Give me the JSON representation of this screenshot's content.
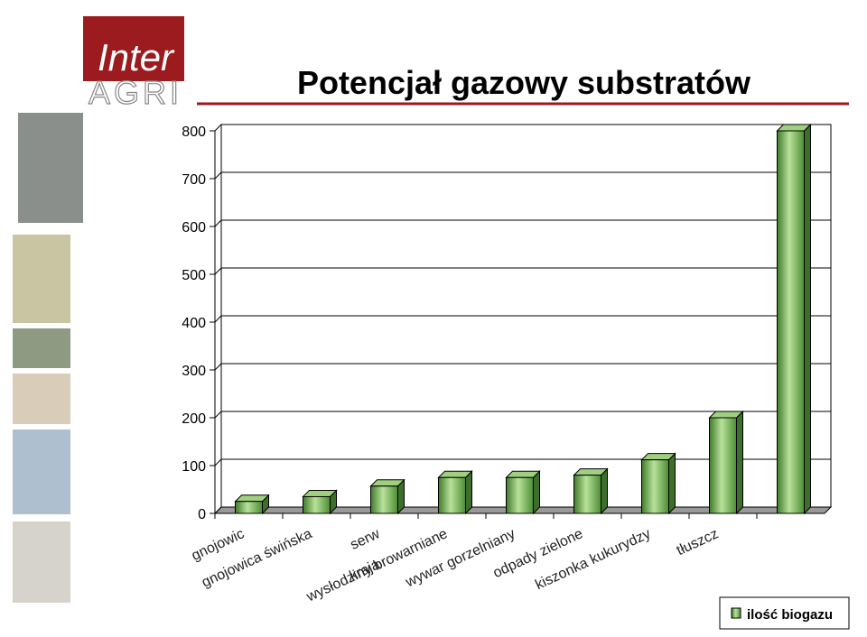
{
  "logo": {
    "top": "Inter",
    "bottom": "AGRI"
  },
  "chart_data": {
    "type": "bar3d",
    "title": "Potencjał gazowy substratów",
    "categories": [
      "gnojowic",
      "gnojowica świńska",
      [
        "serw",
        "kraja"
      ],
      "wysłodziny browarniane",
      "wywar gorzelniany",
      "odpady zielone",
      "kiszonka kukurydzy",
      "tłuszcz",
      null
    ],
    "series": [
      {
        "name": "ilość biogazu",
        "color": "#6aa84f",
        "values": [
          25,
          35,
          57,
          75,
          75,
          80,
          112,
          200,
          800
        ]
      }
    ],
    "ylim": [
      0,
      800
    ],
    "yticks": [
      0,
      100,
      200,
      300,
      400,
      500,
      600,
      700,
      800
    ],
    "grid": true,
    "legend": "bottom-right"
  }
}
